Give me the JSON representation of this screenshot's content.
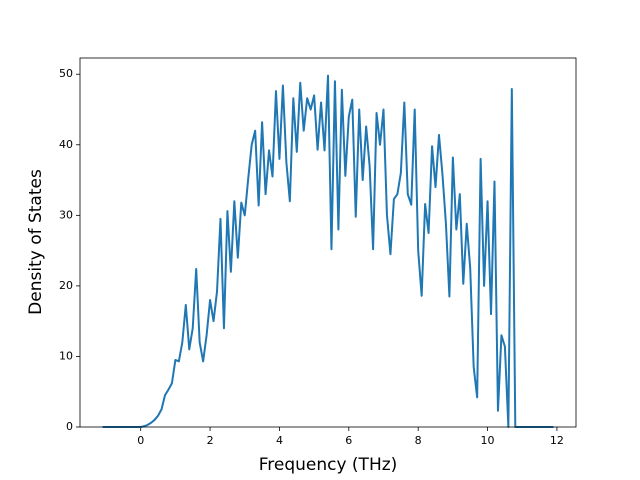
{
  "chart_data": {
    "type": "line",
    "xlabel": "Frequency (THz)",
    "ylabel": "Density of States",
    "x": [
      -1.1,
      0.0,
      0.1,
      0.2,
      0.3,
      0.4,
      0.5,
      0.6,
      0.7,
      0.8,
      0.9,
      1.0,
      1.1,
      1.2,
      1.3,
      1.4,
      1.5,
      1.6,
      1.7,
      1.8,
      1.9,
      2.0,
      2.1,
      2.2,
      2.3,
      2.4,
      2.5,
      2.6,
      2.7,
      2.8,
      2.9,
      3.0,
      3.1,
      3.2,
      3.3,
      3.4,
      3.5,
      3.6,
      3.7,
      3.8,
      3.9,
      4.0,
      4.1,
      4.2,
      4.3,
      4.4,
      4.5,
      4.6,
      4.7,
      4.8,
      4.9,
      5.0,
      5.1,
      5.2,
      5.3,
      5.4,
      5.5,
      5.6,
      5.7,
      5.8,
      5.9,
      6.0,
      6.1,
      6.2,
      6.3,
      6.4,
      6.5,
      6.6,
      6.7,
      6.8,
      6.9,
      7.0,
      7.1,
      7.2,
      7.3,
      7.4,
      7.5,
      7.6,
      7.7,
      7.8,
      7.9,
      8.0,
      8.1,
      8.2,
      8.3,
      8.4,
      8.5,
      8.6,
      8.7,
      8.8,
      8.9,
      9.0,
      9.1,
      9.2,
      9.3,
      9.4,
      9.5,
      9.6,
      9.7,
      9.8,
      9.9,
      10.0,
      10.1,
      10.2,
      10.3,
      10.4,
      10.5,
      10.6,
      10.7,
      10.8,
      11.9
    ],
    "series": [
      {
        "color": "#1f77b4",
        "values": [
          0,
          0,
          0.1,
          0.3,
          0.6,
          1.0,
          1.6,
          2.5,
          4.5,
          5.3,
          6.2,
          9.5,
          9.3,
          12,
          17.3,
          11,
          14,
          22.4,
          12,
          9.3,
          13,
          18,
          15,
          19.2,
          29.5,
          14,
          30.6,
          22,
          32,
          24,
          31.8,
          30,
          35.2,
          40,
          42,
          31.4,
          43.2,
          33,
          39.2,
          35.5,
          47.6,
          38,
          48.4,
          37.5,
          32,
          46.6,
          39,
          48.8,
          42,
          46.6,
          45,
          47,
          39.3,
          46,
          39.2,
          49.8,
          25.2,
          49,
          28,
          47.8,
          35.6,
          44,
          46.4,
          29.8,
          45,
          35,
          42.6,
          37,
          25.2,
          44.5,
          40,
          45,
          30,
          24.5,
          32.3,
          33,
          36,
          46,
          33,
          31.5,
          45,
          25,
          18.6,
          31.6,
          27.5,
          39.8,
          34,
          41.4,
          35.8,
          28.8,
          18.5,
          38.2,
          28,
          33,
          20.3,
          28.8,
          22.5,
          8.5,
          4.2,
          38,
          20,
          32,
          16,
          34.8,
          2.3,
          13,
          11.4,
          0,
          47.9,
          0,
          0
        ]
      }
    ],
    "xlim": [
      -1.75,
      12.55
    ],
    "xticks": [
      0,
      2,
      4,
      6,
      8,
      10,
      12
    ],
    "ylim": [
      0,
      52.3
    ],
    "yticks": [
      0,
      10,
      20,
      30,
      40,
      50
    ],
    "grid": false
  }
}
